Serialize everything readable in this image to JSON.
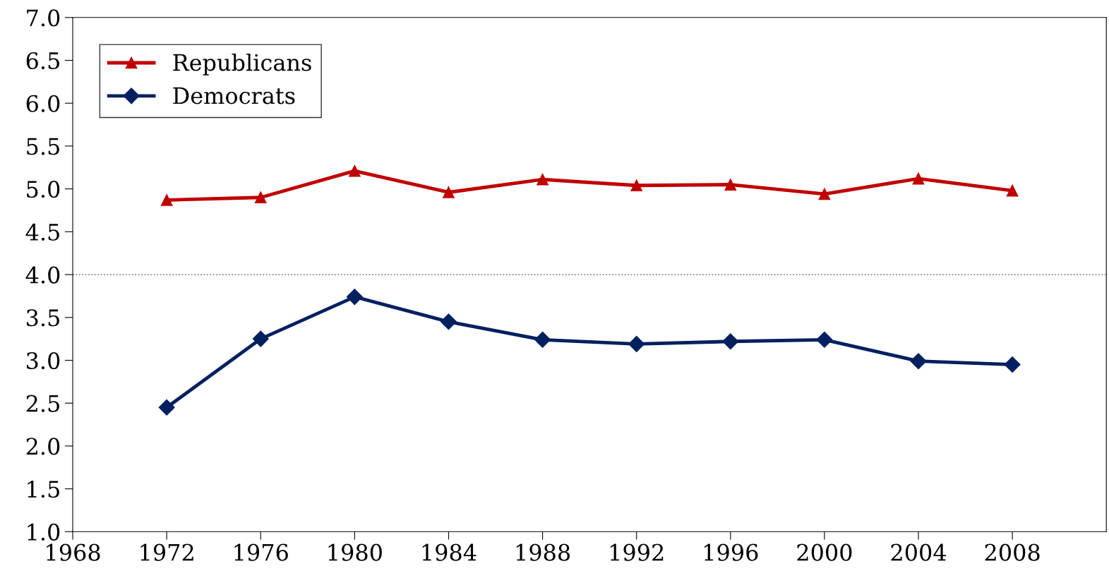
{
  "chart_data": {
    "type": "line",
    "x": [
      1972,
      1976,
      1980,
      1984,
      1988,
      1992,
      1996,
      2000,
      2004,
      2008
    ],
    "series": [
      {
        "name": "Republicans",
        "color": "#c00000",
        "marker": "triangle",
        "values": [
          4.87,
          4.9,
          5.21,
          4.96,
          5.11,
          5.04,
          5.05,
          4.94,
          5.12,
          4.98
        ]
      },
      {
        "name": "Democrats",
        "color": "#002060",
        "marker": "diamond",
        "values": [
          2.45,
          3.25,
          3.74,
          3.45,
          3.24,
          3.19,
          3.22,
          3.24,
          2.99,
          2.95
        ]
      }
    ],
    "xlim": [
      1968,
      2012
    ],
    "xticks": [
      1968,
      1972,
      1976,
      1980,
      1984,
      1988,
      1992,
      1996,
      2000,
      2004,
      2008
    ],
    "ylim": [
      1.0,
      7.0
    ],
    "yticks": [
      {
        "value": 1.0,
        "label": "1.0"
      },
      {
        "value": 1.5,
        "label": "1.5"
      },
      {
        "value": 2.0,
        "label": "2.0"
      },
      {
        "value": 2.5,
        "label": "2.5"
      },
      {
        "value": 3.0,
        "label": "3.0"
      },
      {
        "value": 3.5,
        "label": "3.5"
      },
      {
        "value": 4.0,
        "label": "4.0"
      },
      {
        "value": 4.5,
        "label": "4.5"
      },
      {
        "value": 5.0,
        "label": "5.0"
      },
      {
        "value": 5.5,
        "label": "5.5"
      },
      {
        "value": 6.0,
        "label": "6.0"
      },
      {
        "value": 6.5,
        "label": "6.5"
      },
      {
        "value": 7.0,
        "label": "7.0"
      }
    ],
    "ref_lines": [
      {
        "axis": "y",
        "value": 4.0,
        "color": "#808080",
        "line_style": "dotted"
      }
    ],
    "grid": false,
    "legend": "top left"
  }
}
